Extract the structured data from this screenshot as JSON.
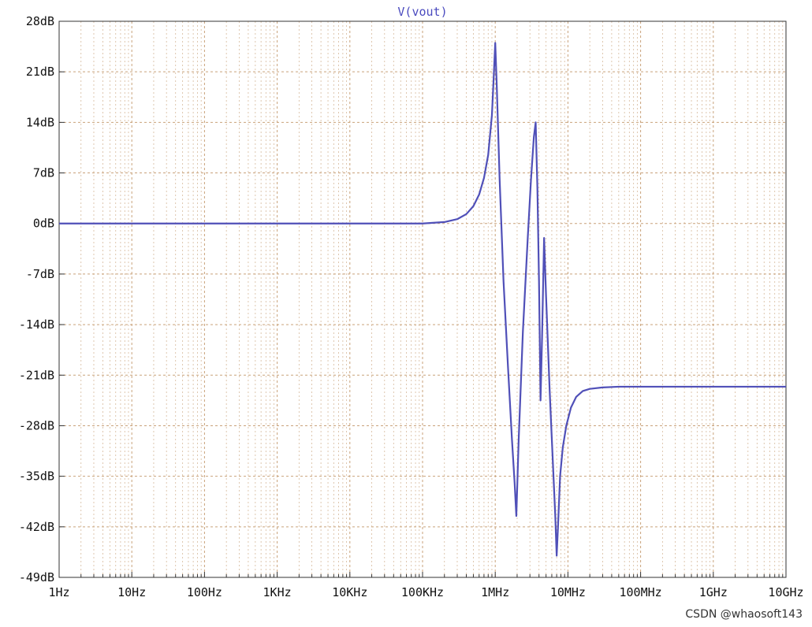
{
  "chart_data": {
    "type": "line",
    "title": "V(vout)",
    "x_scale": "log",
    "xlim": [
      1,
      10000000000
    ],
    "x_tick_values": [
      1,
      10,
      100,
      1000,
      10000,
      100000,
      1000000,
      10000000,
      100000000,
      1000000000,
      10000000000
    ],
    "x_tick_labels": [
      "1Hz",
      "10Hz",
      "100Hz",
      "1KHz",
      "10KHz",
      "100KHz",
      "1MHz",
      "10MHz",
      "100MHz",
      "1GHz",
      "10GHz"
    ],
    "ylim": [
      -49,
      28
    ],
    "y_tick_values": [
      28,
      21,
      14,
      7,
      0,
      -7,
      -14,
      -21,
      -28,
      -35,
      -42,
      -49
    ],
    "y_tick_labels": [
      "28dB",
      "21dB",
      "14dB",
      "7dB",
      "0dB",
      "-7dB",
      "-14dB",
      "-21dB",
      "-28dB",
      "-35dB",
      "-42dB",
      "-49dB"
    ],
    "grid": true,
    "colors": {
      "series": "#5050b8",
      "grid": "#c9a27a",
      "title": "#4b4bbf"
    },
    "series": [
      {
        "x": [
          1,
          10,
          100,
          1000,
          10000,
          100000,
          200000,
          300000,
          400000,
          500000,
          600000,
          700000,
          800000,
          900000,
          950000,
          1000000,
          1050000,
          1150000,
          1300000,
          1500000,
          1700000,
          1850000,
          1950000,
          2100000,
          2400000,
          2800000,
          3100000,
          3400000,
          3600000,
          3800000,
          4000000,
          4200000,
          4400000,
          4700000,
          5000000,
          5600000,
          6200000,
          6700000,
          7000000,
          7300000,
          7800000,
          8500000,
          9500000,
          11000000,
          13000000,
          16000000,
          20000000,
          30000000,
          50000000,
          100000000,
          1000000000,
          10000000000
        ],
        "y": [
          0,
          0,
          0,
          0,
          0,
          0,
          0.2,
          0.6,
          1.3,
          2.4,
          4.0,
          6.3,
          9.5,
          15.0,
          20.0,
          25.0,
          19.0,
          6.0,
          -8.0,
          -20.0,
          -30.0,
          -36.0,
          -40.5,
          -30.0,
          -15.0,
          -2.0,
          6.0,
          12.0,
          14.0,
          5.0,
          -8.0,
          -24.5,
          -16.0,
          -2.0,
          -10.0,
          -23.0,
          -33.0,
          -40.5,
          -46.0,
          -42.0,
          -35.0,
          -31.0,
          -28.0,
          -25.5,
          -24.0,
          -23.2,
          -22.9,
          -22.7,
          -22.6,
          -22.6,
          -22.6,
          -22.6
        ]
      }
    ]
  },
  "watermark": "CSDN @whaosoft143"
}
